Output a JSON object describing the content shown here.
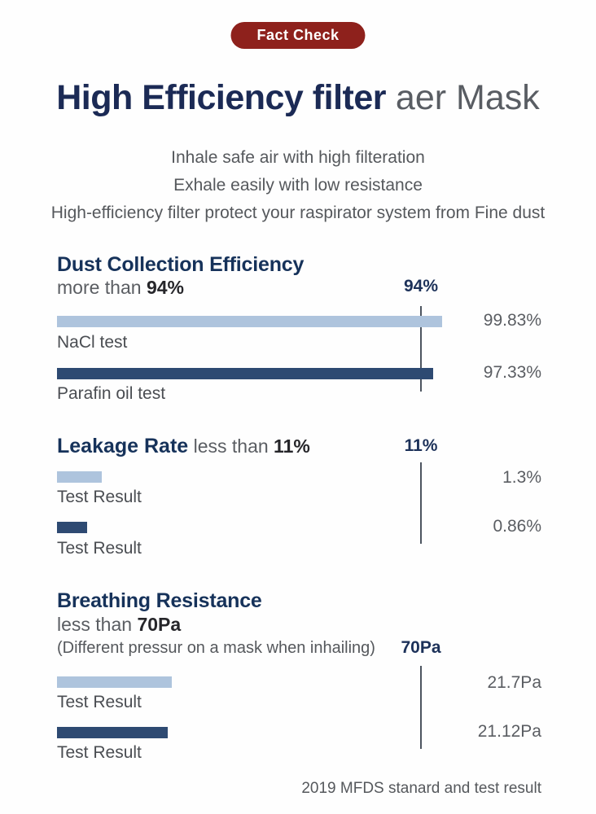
{
  "badge": {
    "label": "Fact Check",
    "bg": "#8e211c"
  },
  "header": {
    "title_bold": "High Efficiency filter",
    "title_light": " aer Mask",
    "subtitle_lines": [
      "Inhale safe air with high filteration",
      "Exhale easily with low resistance",
      "High-efficiency filter protect your raspirator system from Fine dust"
    ]
  },
  "colors": {
    "navy_title": "#1b2a55",
    "section_heading": "#16325a",
    "light_bar": "#aec4dd",
    "dark_bar": "#2e4a72",
    "badge_red": "#8e211c",
    "threshold_line": "#4d5560",
    "gray_text": "#55585c"
  },
  "sections": [
    {
      "title": "Dust Collection Efficiency",
      "subtitle_prefix": "more than ",
      "subtitle_value": "94%",
      "threshold_label": "94%",
      "bars": [
        {
          "label": "NaCl test",
          "value": "99.83%",
          "width_css": "473px",
          "color_css": "#aec4dd"
        },
        {
          "label": "Parafin oil test",
          "value": "97.33%",
          "width_css": "462px",
          "color_css": "#2e4a72"
        }
      ]
    },
    {
      "title": "Leakage Rate",
      "subtitle_prefix": " less than ",
      "subtitle_value": "11%",
      "threshold_label": "11%",
      "bars": [
        {
          "label": "Test Result",
          "value": "1.3%",
          "width_css": "55px",
          "color_css": "#aec4dd"
        },
        {
          "label": "Test Result",
          "value": "0.86%",
          "width_css": "37px",
          "color_css": "#2e4a72"
        }
      ]
    },
    {
      "title": "Breathing Resistance",
      "subtitle_prefix": "less than ",
      "subtitle_value": "70Pa",
      "note": "(Different pressur on a mask when inhailing)",
      "threshold_label": "70Pa",
      "bars": [
        {
          "label": "Test Result",
          "value": "21.7Pa",
          "width_css": "141px",
          "color_css": "#aec4dd"
        },
        {
          "label": "Test Result",
          "value": "21.12Pa",
          "width_css": "136px",
          "color_css": "#2e4a72"
        }
      ]
    }
  ],
  "footer": "2019 MFDS stanard and test result",
  "chart_data": [
    {
      "type": "bar",
      "orientation": "horizontal",
      "title": "Dust Collection Efficiency",
      "subtitle": "more than 94%",
      "threshold": {
        "value": 94,
        "label": "94%"
      },
      "categories": [
        "NaCl test",
        "Parafin oil test"
      ],
      "values": [
        99.83,
        97.33
      ],
      "unit": "%",
      "bar_colors": [
        "#aec4dd",
        "#2e4a72"
      ],
      "grid": false,
      "legend": "none"
    },
    {
      "type": "bar",
      "orientation": "horizontal",
      "title": "Leakage Rate",
      "subtitle": "less than 11%",
      "threshold": {
        "value": 11,
        "label": "11%"
      },
      "categories": [
        "Test Result",
        "Test Result"
      ],
      "values": [
        1.3,
        0.86
      ],
      "unit": "%",
      "bar_colors": [
        "#aec4dd",
        "#2e4a72"
      ],
      "grid": false,
      "legend": "none"
    },
    {
      "type": "bar",
      "orientation": "horizontal",
      "title": "Breathing Resistance",
      "subtitle": "less than 70Pa",
      "note": "(Different pressur on a mask when inhailing)",
      "threshold": {
        "value": 70,
        "label": "70Pa"
      },
      "categories": [
        "Test Result",
        "Test Result"
      ],
      "values": [
        21.7,
        21.12
      ],
      "unit": "Pa",
      "bar_colors": [
        "#aec4dd",
        "#2e4a72"
      ],
      "grid": false,
      "legend": "none"
    }
  ]
}
